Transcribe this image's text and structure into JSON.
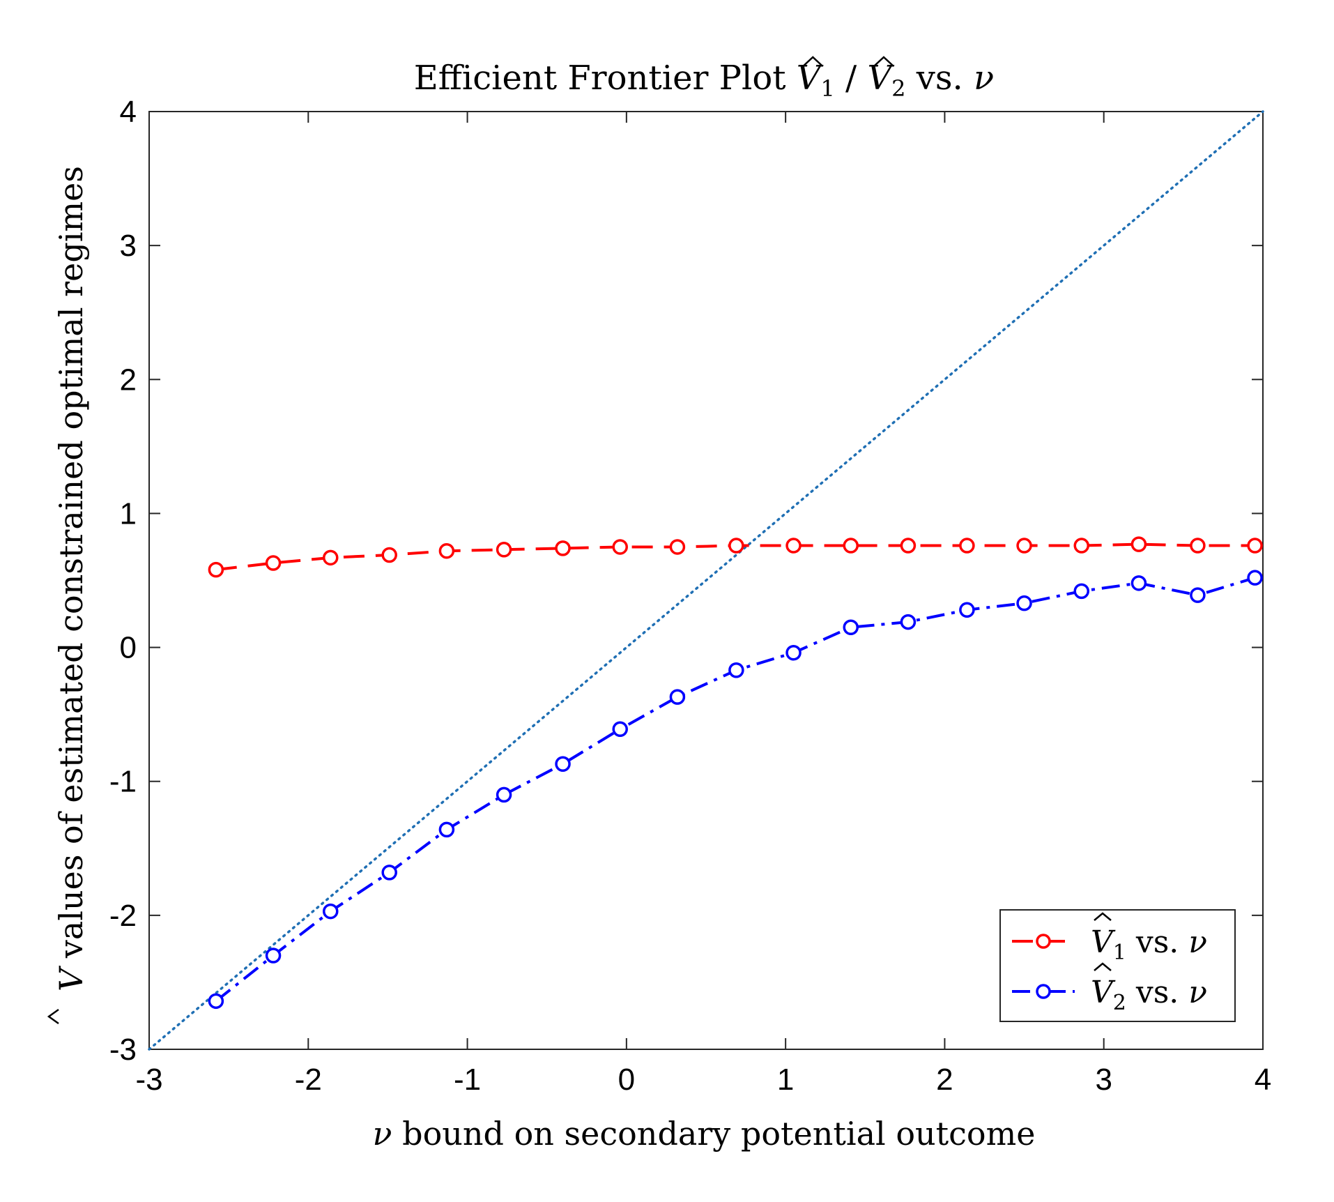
{
  "chart_data": {
    "type": "line",
    "title": {
      "prefix": "Efficient Frontier Plot ",
      "v": "V",
      "sub1": "1",
      "slash": " / ",
      "sub2": "2",
      "suffix": " vs. ",
      "nu": "ν"
    },
    "xlabel": {
      "nu": "ν",
      "text": " bound on secondary potential outcome"
    },
    "ylabel": {
      "v": "V",
      "text": " values of estimated constrained optimal regimes"
    },
    "xlim": [
      -3,
      4
    ],
    "ylim": [
      -3,
      4
    ],
    "xticks": [
      "-3",
      "-2",
      "-1",
      "0",
      "1",
      "2",
      "3",
      "4"
    ],
    "yticks": [
      "-3",
      "-2",
      "-1",
      "0",
      "1",
      "2",
      "3",
      "4"
    ],
    "grid": false,
    "legend_position": "bottom-right",
    "reference_line": {
      "style": "dotted",
      "color": "#1f6fb4",
      "x": [
        -3,
        4
      ],
      "y": [
        -3,
        4
      ]
    },
    "x": [
      -2.58,
      -2.22,
      -1.86,
      -1.49,
      -1.13,
      -0.77,
      -0.4,
      -0.04,
      0.32,
      0.69,
      1.05,
      1.41,
      1.77,
      2.14,
      2.5,
      2.86,
      3.22,
      3.59,
      3.95
    ],
    "series": [
      {
        "name": {
          "v": "V",
          "sub": "1",
          "suffix": " vs. ",
          "nu": "ν"
        },
        "color": "#ff0000",
        "dash": "long-dash",
        "marker": "circle",
        "values": [
          0.58,
          0.63,
          0.67,
          0.69,
          0.72,
          0.73,
          0.74,
          0.75,
          0.75,
          0.76,
          0.76,
          0.76,
          0.76,
          0.76,
          0.76,
          0.76,
          0.77,
          0.76,
          0.76
        ]
      },
      {
        "name": {
          "v": "V",
          "sub": "2",
          "suffix": " vs. ",
          "nu": "ν"
        },
        "color": "#0000ff",
        "dash": "dash-dot",
        "marker": "circle",
        "values": [
          -2.64,
          -2.3,
          -1.97,
          -1.68,
          -1.36,
          -1.1,
          -0.87,
          -0.61,
          -0.37,
          -0.17,
          -0.04,
          0.15,
          0.19,
          0.28,
          0.33,
          0.42,
          0.48,
          0.39,
          0.52
        ]
      }
    ]
  }
}
